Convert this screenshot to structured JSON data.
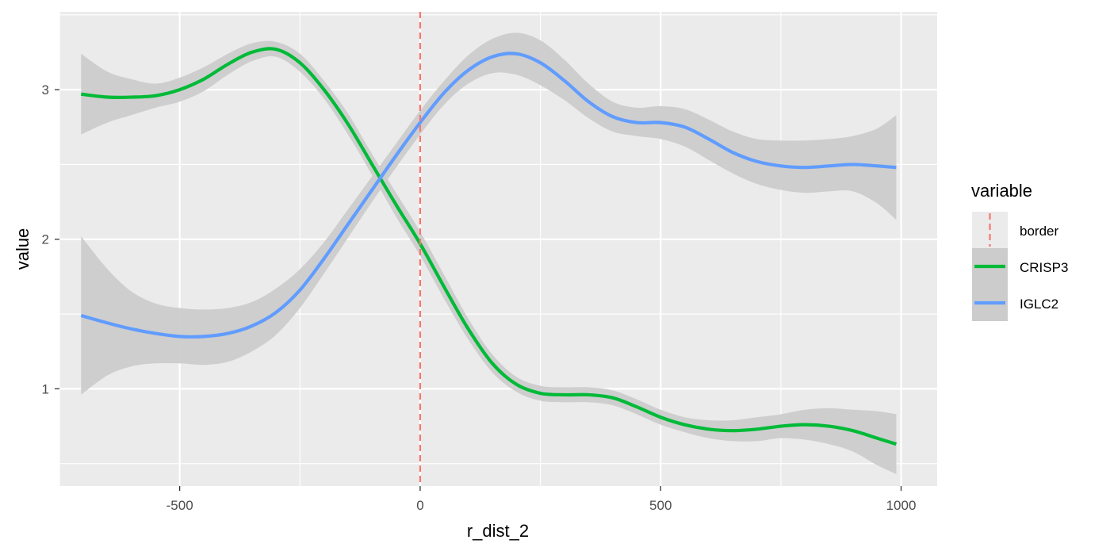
{
  "chart_data": {
    "type": "line",
    "xlabel": "r_dist_2",
    "ylabel": "value",
    "xlim": [
      -750,
      1075
    ],
    "ylim": [
      0.35,
      3.52
    ],
    "x_ticks": [
      -500,
      0,
      500,
      1000
    ],
    "x_tick_labels": [
      "-500",
      "0",
      "500",
      "1000"
    ],
    "y_ticks": [
      1,
      2,
      3
    ],
    "y_tick_labels": [
      "1",
      "2",
      "3"
    ],
    "grid": true,
    "background": "#ebebeb",
    "legend": {
      "title": "variable",
      "placement": "right",
      "entries": [
        {
          "label": "border",
          "color": "#f8766d",
          "style": "dashed"
        },
        {
          "label": "CRISP3",
          "color": "#00ba38",
          "style": "solid"
        },
        {
          "label": "IGLC2",
          "color": "#619cff",
          "style": "solid"
        }
      ]
    },
    "vline": {
      "name": "border",
      "x": 0,
      "color": "#f8766d"
    },
    "ribbon_color": "#cccccc",
    "series": [
      {
        "name": "CRISP3",
        "color": "#00ba38",
        "x": [
          -705,
          -650,
          -600,
          -550,
          -500,
          -450,
          -400,
          -350,
          -300,
          -250,
          -200,
          -150,
          -100,
          -50,
          0,
          50,
          100,
          150,
          200,
          250,
          300,
          350,
          400,
          450,
          500,
          550,
          600,
          650,
          700,
          750,
          800,
          850,
          900,
          950,
          990
        ],
        "y": [
          2.97,
          2.95,
          2.95,
          2.96,
          3.0,
          3.07,
          3.17,
          3.25,
          3.27,
          3.18,
          3.0,
          2.77,
          2.5,
          2.23,
          1.97,
          1.68,
          1.4,
          1.17,
          1.03,
          0.97,
          0.96,
          0.96,
          0.94,
          0.88,
          0.81,
          0.76,
          0.73,
          0.72,
          0.73,
          0.75,
          0.76,
          0.75,
          0.72,
          0.67,
          0.63
        ],
        "lower": [
          2.7,
          2.78,
          2.83,
          2.88,
          2.92,
          2.99,
          3.1,
          3.19,
          3.22,
          3.12,
          2.94,
          2.7,
          2.43,
          2.15,
          1.89,
          1.6,
          1.33,
          1.11,
          0.98,
          0.92,
          0.91,
          0.91,
          0.89,
          0.83,
          0.76,
          0.71,
          0.67,
          0.65,
          0.65,
          0.67,
          0.66,
          0.63,
          0.58,
          0.49,
          0.43
        ],
        "upper": [
          3.24,
          3.12,
          3.07,
          3.04,
          3.08,
          3.15,
          3.24,
          3.31,
          3.32,
          3.24,
          3.06,
          2.84,
          2.57,
          2.31,
          2.05,
          1.76,
          1.47,
          1.23,
          1.08,
          1.02,
          1.01,
          1.01,
          0.99,
          0.93,
          0.86,
          0.81,
          0.79,
          0.79,
          0.81,
          0.83,
          0.86,
          0.87,
          0.86,
          0.85,
          0.83
        ]
      },
      {
        "name": "IGLC2",
        "color": "#619cff",
        "x": [
          -705,
          -650,
          -600,
          -550,
          -500,
          -450,
          -400,
          -350,
          -300,
          -250,
          -200,
          -150,
          -100,
          -50,
          0,
          50,
          100,
          150,
          200,
          250,
          300,
          350,
          400,
          450,
          500,
          550,
          600,
          650,
          700,
          750,
          800,
          850,
          900,
          950,
          990
        ],
        "y": [
          1.49,
          1.44,
          1.4,
          1.37,
          1.35,
          1.35,
          1.37,
          1.42,
          1.51,
          1.66,
          1.87,
          2.1,
          2.33,
          2.56,
          2.78,
          2.98,
          3.13,
          3.22,
          3.24,
          3.18,
          3.06,
          2.92,
          2.82,
          2.78,
          2.78,
          2.75,
          2.67,
          2.58,
          2.52,
          2.49,
          2.48,
          2.49,
          2.5,
          2.49,
          2.48
        ],
        "lower": [
          0.96,
          1.09,
          1.15,
          1.17,
          1.17,
          1.16,
          1.18,
          1.25,
          1.36,
          1.54,
          1.77,
          2.01,
          2.25,
          2.48,
          2.7,
          2.9,
          3.04,
          3.11,
          3.1,
          3.03,
          2.93,
          2.81,
          2.72,
          2.69,
          2.67,
          2.62,
          2.53,
          2.44,
          2.37,
          2.33,
          2.31,
          2.32,
          2.32,
          2.24,
          2.13
        ],
        "upper": [
          2.02,
          1.8,
          1.65,
          1.57,
          1.54,
          1.53,
          1.54,
          1.58,
          1.67,
          1.8,
          1.98,
          2.2,
          2.42,
          2.64,
          2.86,
          3.06,
          3.23,
          3.34,
          3.38,
          3.33,
          3.2,
          3.04,
          2.92,
          2.88,
          2.89,
          2.87,
          2.8,
          2.72,
          2.67,
          2.66,
          2.66,
          2.67,
          2.69,
          2.74,
          2.83
        ]
      }
    ]
  }
}
